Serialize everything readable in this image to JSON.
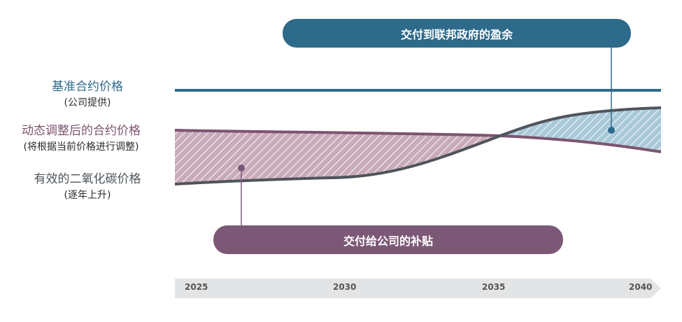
{
  "labels": {
    "base_contract": {
      "title": "基准合约价格",
      "note": "(公司提供)"
    },
    "dynamic_contract": {
      "title": "动态调整后的合约价格",
      "note": "(将根据当前价格进行调整)"
    },
    "carbon_price": {
      "title": "有效的二氧化碳价格",
      "note": "(逐年上升)"
    }
  },
  "callouts": {
    "surplus": "交付到联邦政府的盈余",
    "subsidy": "交付给公司的补贴"
  },
  "timeline": {
    "years": [
      "2025",
      "2030",
      "2035",
      "2040"
    ]
  },
  "colors": {
    "base": "#2e6a8a",
    "dynamic": "#7d5470",
    "carbon": "#4e555a",
    "subsidy_fill": "#c9aab9",
    "surplus_fill": "#a9c8d8",
    "timeline_bg": "#e2e4e5"
  }
}
